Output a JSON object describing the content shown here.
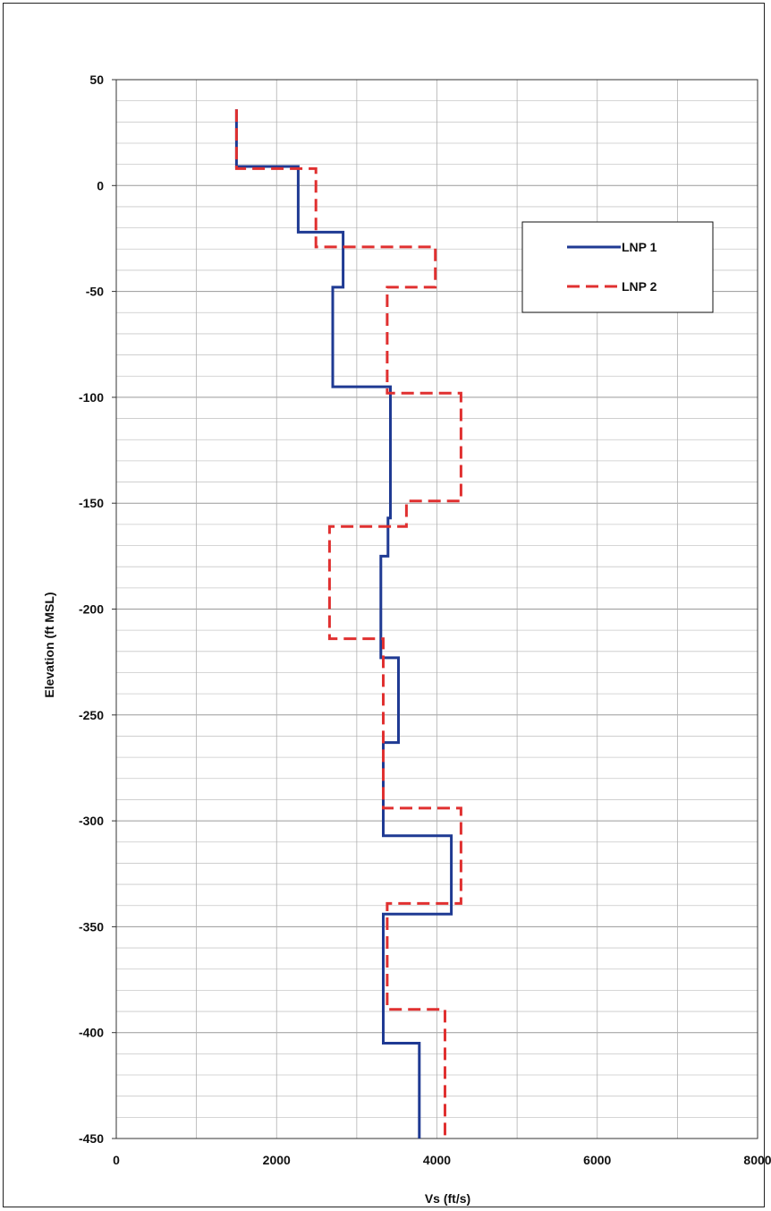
{
  "chart_data": {
    "type": "line",
    "xlabel": "Vs (ft/s)",
    "ylabel": "Elevation (ft MSL)",
    "xlim": [
      0,
      8000
    ],
    "ylim": [
      -450,
      50
    ],
    "xticks": [
      0,
      2000,
      4000,
      6000,
      8000
    ],
    "yticks": [
      50,
      0,
      -50,
      -100,
      -150,
      -200,
      -250,
      -300,
      -350,
      -400,
      -450
    ],
    "grid": "on",
    "legend_position": "top-right",
    "series": [
      {
        "name": "LNP 1",
        "color": "#1f3a93",
        "style": "solid",
        "points": [
          [
            1500,
            36
          ],
          [
            1500,
            9
          ],
          [
            2270,
            9
          ],
          [
            2270,
            -22
          ],
          [
            2830,
            -22
          ],
          [
            2830,
            -48
          ],
          [
            2700,
            -48
          ],
          [
            2700,
            -95
          ],
          [
            3420,
            -95
          ],
          [
            3420,
            -157
          ],
          [
            3390,
            -157
          ],
          [
            3390,
            -175
          ],
          [
            3300,
            -175
          ],
          [
            3300,
            -223
          ],
          [
            3520,
            -223
          ],
          [
            3520,
            -263
          ],
          [
            3330,
            -263
          ],
          [
            3330,
            -307
          ],
          [
            4180,
            -307
          ],
          [
            4180,
            -344
          ],
          [
            3330,
            -344
          ],
          [
            3330,
            -405
          ],
          [
            3780,
            -405
          ],
          [
            3780,
            -450
          ]
        ]
      },
      {
        "name": "LNP 2",
        "color": "#e03030",
        "style": "dashed",
        "points": [
          [
            1500,
            36
          ],
          [
            1500,
            8
          ],
          [
            2490,
            8
          ],
          [
            2490,
            -29
          ],
          [
            3980,
            -29
          ],
          [
            3980,
            -48
          ],
          [
            3380,
            -48
          ],
          [
            3380,
            -98
          ],
          [
            4300,
            -98
          ],
          [
            4300,
            -149
          ],
          [
            3620,
            -149
          ],
          [
            3620,
            -161
          ],
          [
            2660,
            -161
          ],
          [
            2660,
            -214
          ],
          [
            3330,
            -214
          ],
          [
            3330,
            -294
          ],
          [
            4300,
            -294
          ],
          [
            4300,
            -339
          ],
          [
            3380,
            -339
          ],
          [
            3380,
            -389
          ],
          [
            4100,
            -389
          ],
          [
            4100,
            -450
          ]
        ]
      }
    ]
  }
}
